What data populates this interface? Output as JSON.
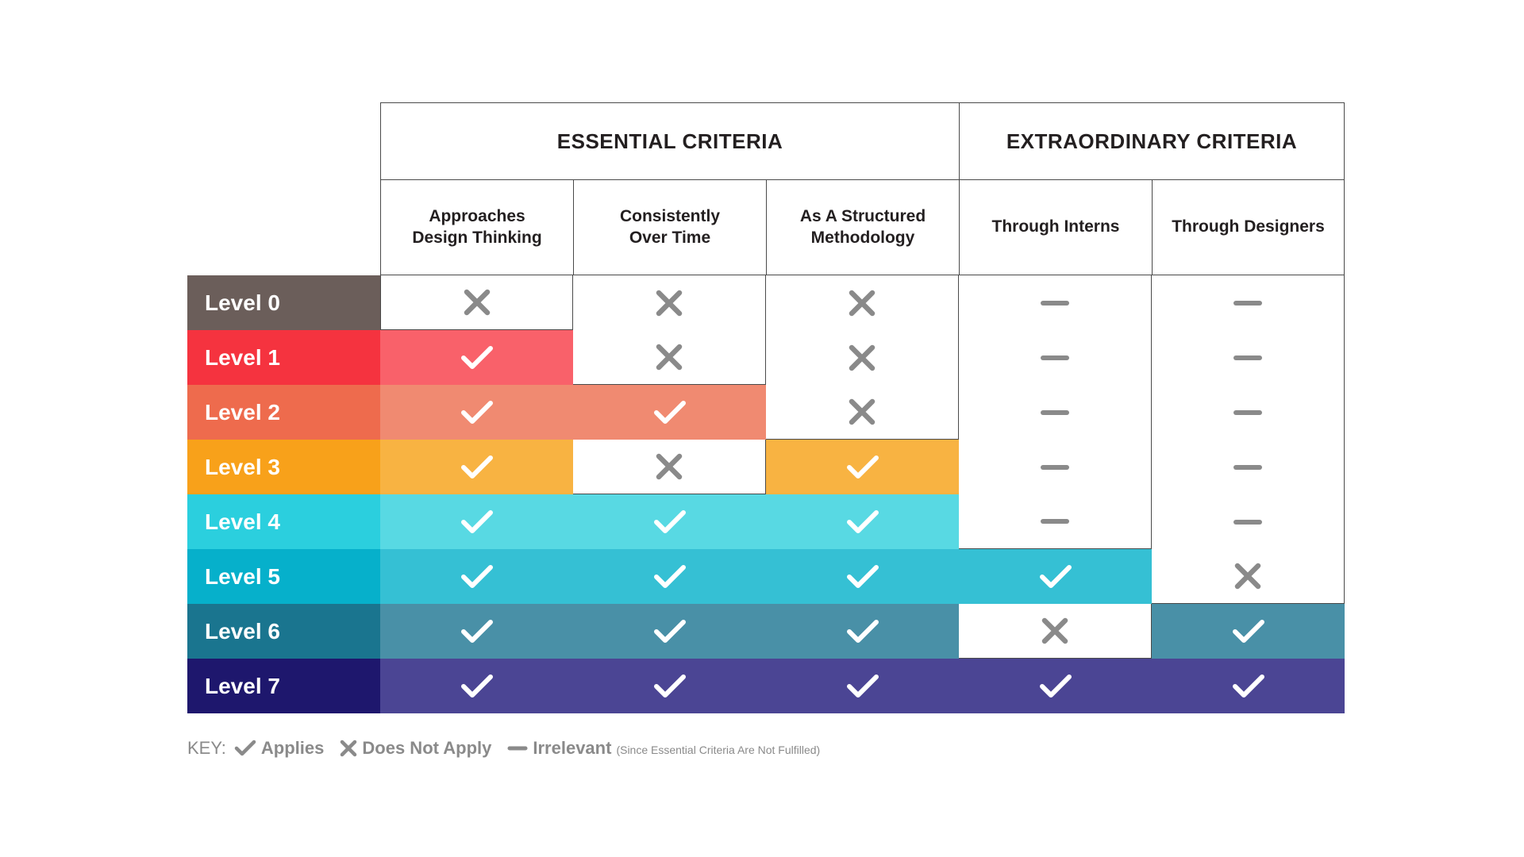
{
  "groups": [
    {
      "label": "ESSENTIAL CRITERIA",
      "span": 3
    },
    {
      "label": "EXTRAORDINARY CRITERIA",
      "span": 2
    }
  ],
  "columns": [
    "Approaches\nDesign Thinking",
    "Consistently\nOver Time",
    "As A Structured\nMethodology",
    "Through Interns",
    "Through Designers"
  ],
  "rows": [
    {
      "label": "Level 0",
      "color": "#6b5e5a",
      "tint": "#ffffff",
      "cells": [
        "no",
        "no",
        "no",
        "irrelevant",
        "irrelevant"
      ]
    },
    {
      "label": "Level 1",
      "color": "#f5333f",
      "tint": "#f9616a",
      "cells": [
        "yes",
        "no",
        "no",
        "irrelevant",
        "irrelevant"
      ]
    },
    {
      "label": "Level 2",
      "color": "#ee6b4d",
      "tint": "#f08a71",
      "cells": [
        "yes",
        "yes",
        "no",
        "irrelevant",
        "irrelevant"
      ]
    },
    {
      "label": "Level 3",
      "color": "#f8a11a",
      "tint": "#f8b342",
      "cells": [
        "yes",
        "no",
        "yes",
        "irrelevant",
        "irrelevant"
      ]
    },
    {
      "label": "Level 4",
      "color": "#2bcfde",
      "tint": "#58d9e3",
      "cells": [
        "yes",
        "yes",
        "yes",
        "irrelevant",
        "irrelevant"
      ]
    },
    {
      "label": "Level 5",
      "color": "#06b0cb",
      "tint": "#35c0d4",
      "cells": [
        "yes",
        "yes",
        "yes",
        "yes",
        "no"
      ]
    },
    {
      "label": "Level 6",
      "color": "#1a758f",
      "tint": "#4990a7",
      "cells": [
        "yes",
        "yes",
        "yes",
        "no",
        "yes"
      ]
    },
    {
      "label": "Level 7",
      "color": "#1e176d",
      "tint": "#4b4594",
      "cells": [
        "yes",
        "yes",
        "yes",
        "yes",
        "yes"
      ]
    }
  ],
  "legend": {
    "title": "KEY:",
    "applies": "Applies",
    "does_not_apply": "Does Not Apply",
    "irrelevant": "Irrelevant",
    "irrelevant_note": "(Since Essential Criteria Are Not Fulfilled)"
  },
  "colors": {
    "mark_gray": "#8a8a8a",
    "check_white": "#ffffff"
  },
  "icons": {
    "yes": "check-icon",
    "no": "cross-icon",
    "irrelevant": "dash-icon"
  }
}
